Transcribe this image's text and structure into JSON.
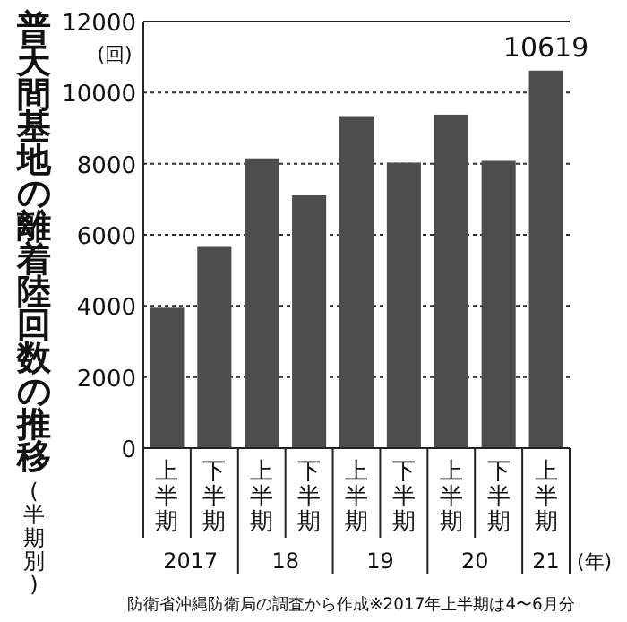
{
  "chart_data": {
    "type": "bar",
    "title": "普天間基地の離着陸回数の推移",
    "subtitle": "(半期別)",
    "ylabel": "(回)",
    "xlabel": "(年)",
    "categories": [
      "上半期",
      "下半期",
      "上半期",
      "下半期",
      "上半期",
      "下半期",
      "上半期",
      "下半期",
      "上半期"
    ],
    "values": [
      3950,
      5660,
      8150,
      7110,
      9340,
      8030,
      9380,
      8080,
      10619
    ],
    "value_labels": [
      null,
      null,
      null,
      null,
      null,
      null,
      null,
      null,
      "10619"
    ],
    "color": "#4d4d4d",
    "ylim": [
      0,
      12000
    ],
    "yticks": [
      0,
      2000,
      4000,
      6000,
      8000,
      10000,
      12000
    ],
    "grid": "y",
    "annotations": [
      "2017",
      "18",
      "19",
      "20",
      "21",
      "防衛省沖縄防衛局の調査から作成※2017年上半期は4〜6月分"
    ]
  }
}
